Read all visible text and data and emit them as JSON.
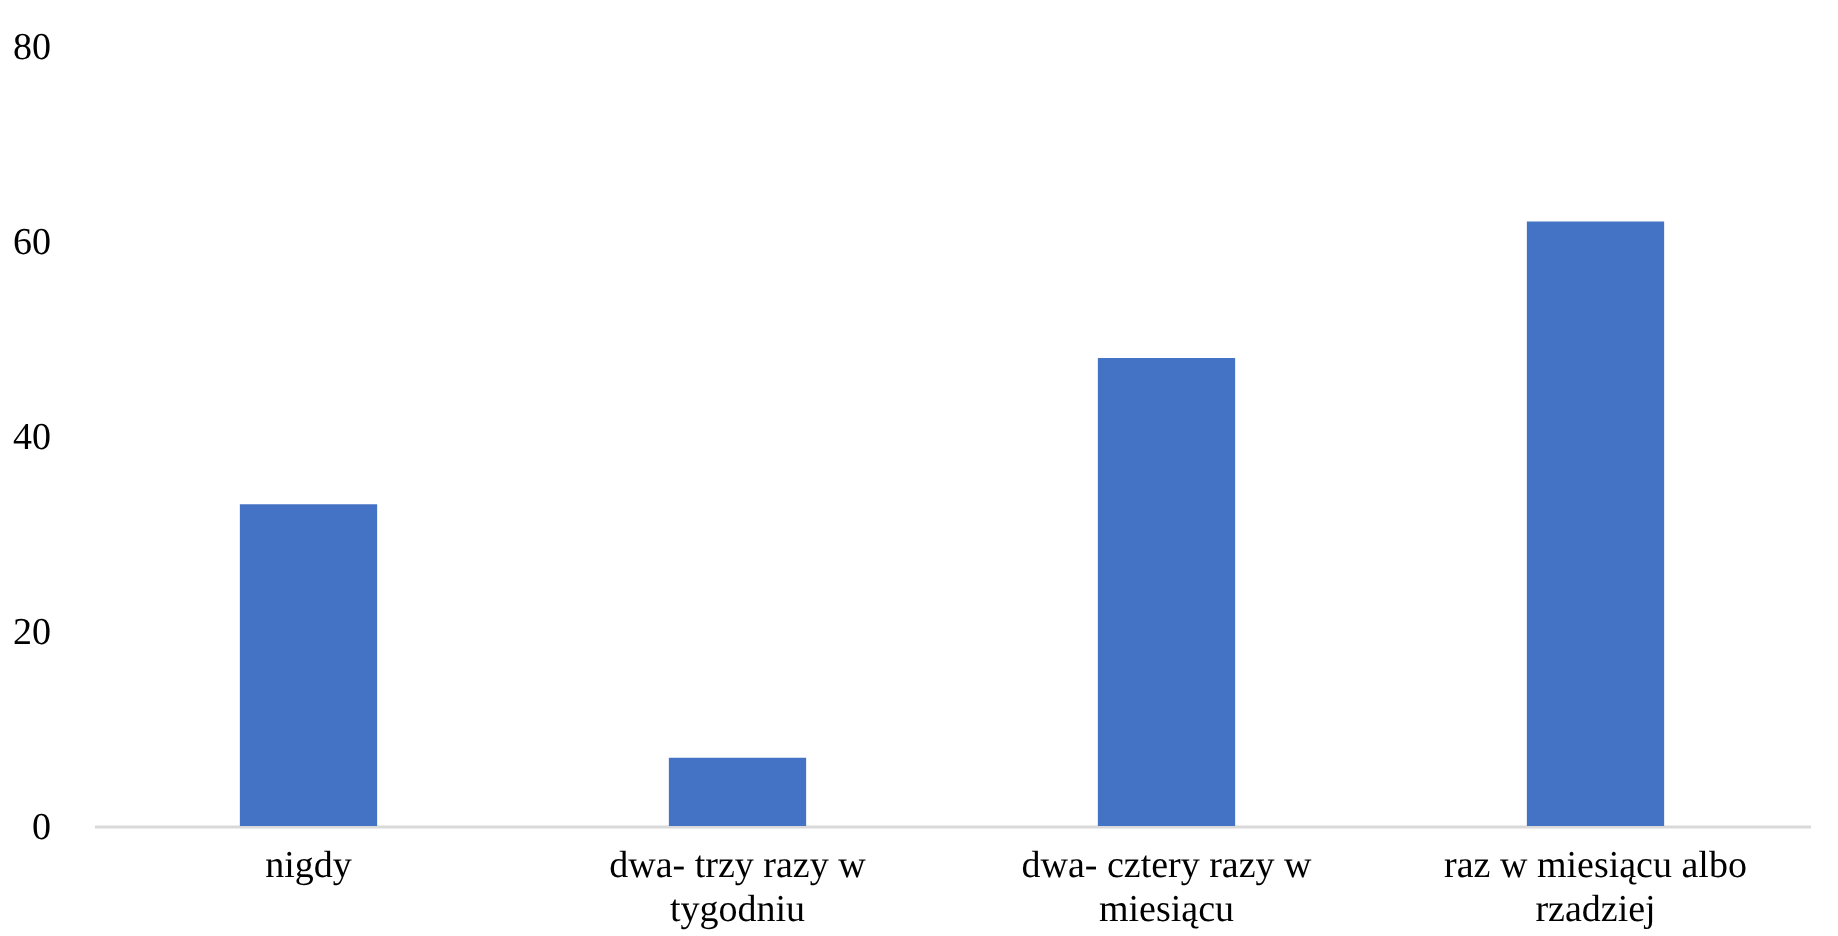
{
  "chart_data": {
    "type": "bar",
    "categories": [
      "nigdy",
      "dwa- trzy razy w tygodniu",
      "dwa- cztery razy w miesiącu",
      "raz w miesiącu albo rzadziej"
    ],
    "values": [
      33,
      7,
      48,
      62
    ],
    "color": "#4472c4",
    "ylim": [
      0,
      80
    ],
    "yticks": [
      0,
      20,
      40,
      60,
      80
    ],
    "grid": false
  }
}
